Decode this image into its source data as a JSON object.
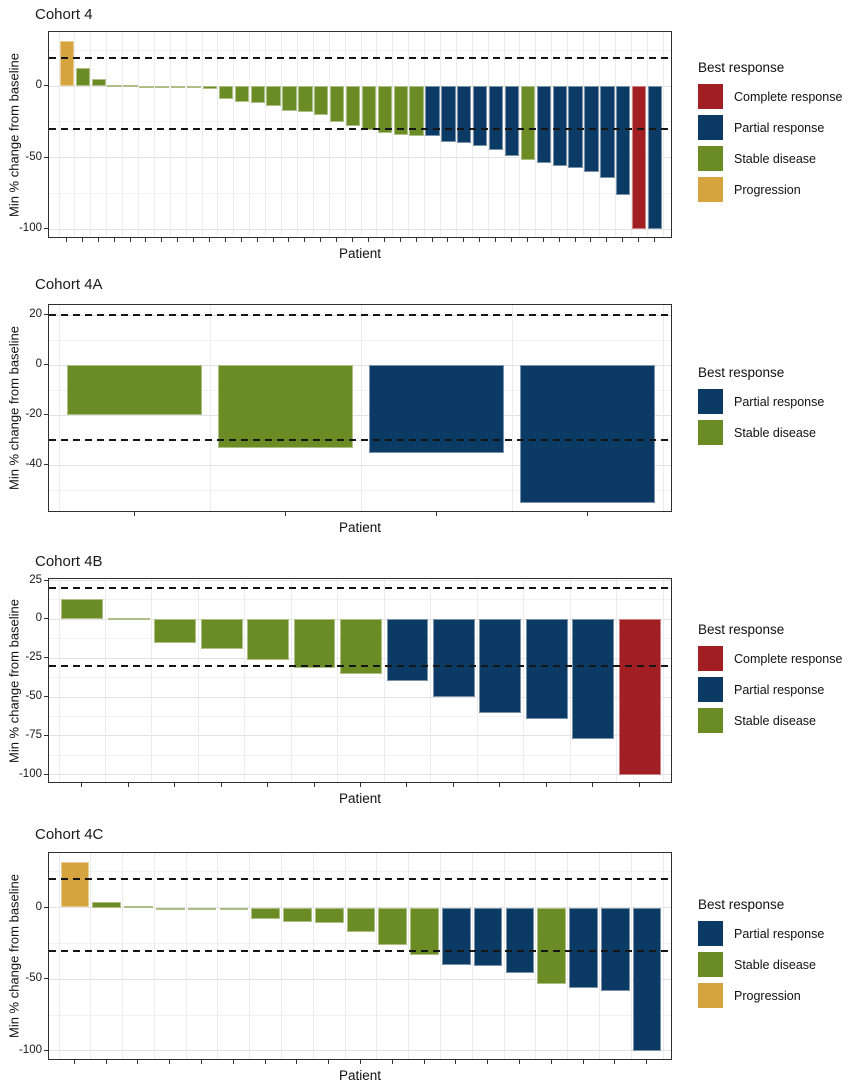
{
  "figure": {
    "ylabel": "Min % change from baseline",
    "xlabel": "Patient",
    "legend_title": "Best response"
  },
  "palette": {
    "Complete response": "#A11E22",
    "Partial response": "#0B3A64",
    "Stable disease": "#6B8B24",
    "Progression": "#D5A43E"
  },
  "chart_data": [
    {
      "type": "bar",
      "title": "Cohort 4",
      "ylabel": "Min % change from baseline",
      "xlabel": "Patient",
      "ylim": [
        38,
        -107
      ],
      "yticks": [
        0,
        -50,
        -100
      ],
      "minor_yticks": [
        25,
        -25,
        -75
      ],
      "ref_lines": [
        20,
        -30
      ],
      "legend": [
        "Complete response",
        "Partial response",
        "Stable disease",
        "Progression"
      ],
      "values": [
        32,
        13,
        5,
        1,
        1,
        0,
        0,
        0,
        0,
        -2,
        -9,
        -11,
        -12,
        -14,
        -17,
        -18,
        -20,
        -25,
        -28,
        -31,
        -33,
        -34,
        -35,
        -35,
        -39,
        -40,
        -42,
        -45,
        -49,
        -52,
        -54,
        -56,
        -57,
        -60,
        -64,
        -76,
        -100,
        -100
      ],
      "responses": [
        "Progression",
        "Stable disease",
        "Stable disease",
        "Stable disease",
        "Stable disease",
        "Stable disease",
        "Stable disease",
        "Stable disease",
        "Stable disease",
        "Stable disease",
        "Stable disease",
        "Stable disease",
        "Stable disease",
        "Stable disease",
        "Stable disease",
        "Stable disease",
        "Stable disease",
        "Stable disease",
        "Stable disease",
        "Stable disease",
        "Stable disease",
        "Stable disease",
        "Stable disease",
        "Partial response",
        "Partial response",
        "Partial response",
        "Partial response",
        "Partial response",
        "Partial response",
        "Stable disease",
        "Partial response",
        "Partial response",
        "Partial response",
        "Partial response",
        "Partial response",
        "Partial response",
        "Complete response",
        "Partial response"
      ]
    },
    {
      "type": "bar",
      "title": "Cohort 4A",
      "ylabel": "Min % change from baseline",
      "xlabel": "Patient",
      "ylim": [
        24,
        -59
      ],
      "yticks": [
        20,
        0,
        -20,
        -40
      ],
      "minor_yticks": [
        10,
        -10,
        -30,
        -50
      ],
      "ref_lines": [
        20,
        -30
      ],
      "legend": [
        "Partial response",
        "Stable disease"
      ],
      "values": [
        -20,
        -33,
        -35,
        -55
      ],
      "responses": [
        "Stable disease",
        "Stable disease",
        "Partial response",
        "Partial response"
      ]
    },
    {
      "type": "bar",
      "title": "Cohort 4B",
      "ylabel": "Min % change from baseline",
      "xlabel": "Patient",
      "ylim": [
        26,
        -106
      ],
      "yticks": [
        25,
        0,
        -25,
        -50,
        -75,
        -100
      ],
      "minor_yticks": [
        12.5,
        -12.5,
        -37.5,
        -62.5,
        -87.5
      ],
      "ref_lines": [
        20,
        -30
      ],
      "legend": [
        "Complete response",
        "Partial response",
        "Stable disease"
      ],
      "values": [
        13,
        1,
        -15,
        -19,
        -26,
        -31,
        -35,
        -40,
        -50,
        -60,
        -64,
        -77,
        -100
      ],
      "responses": [
        "Stable disease",
        "Stable disease",
        "Stable disease",
        "Stable disease",
        "Stable disease",
        "Stable disease",
        "Stable disease",
        "Partial response",
        "Partial response",
        "Partial response",
        "Partial response",
        "Partial response",
        "Complete response"
      ]
    },
    {
      "type": "bar",
      "title": "Cohort 4C",
      "ylabel": "Min % change from baseline",
      "xlabel": "Patient",
      "ylim": [
        38,
        -107
      ],
      "yticks": [
        0,
        -50,
        -100
      ],
      "minor_yticks": [
        25,
        -25,
        -75
      ],
      "ref_lines": [
        20,
        -30
      ],
      "legend": [
        "Partial response",
        "Stable disease",
        "Progression"
      ],
      "values": [
        32,
        4,
        1,
        0,
        0,
        -2,
        -8,
        -10,
        -11,
        -17,
        -26,
        -33,
        -40,
        -41,
        -46,
        -53,
        -56,
        -58,
        -100
      ],
      "responses": [
        "Progression",
        "Stable disease",
        "Stable disease",
        "Stable disease",
        "Stable disease",
        "Stable disease",
        "Stable disease",
        "Stable disease",
        "Stable disease",
        "Stable disease",
        "Stable disease",
        "Stable disease",
        "Partial response",
        "Partial response",
        "Partial response",
        "Stable disease",
        "Partial response",
        "Partial response",
        "Partial response"
      ]
    }
  ]
}
